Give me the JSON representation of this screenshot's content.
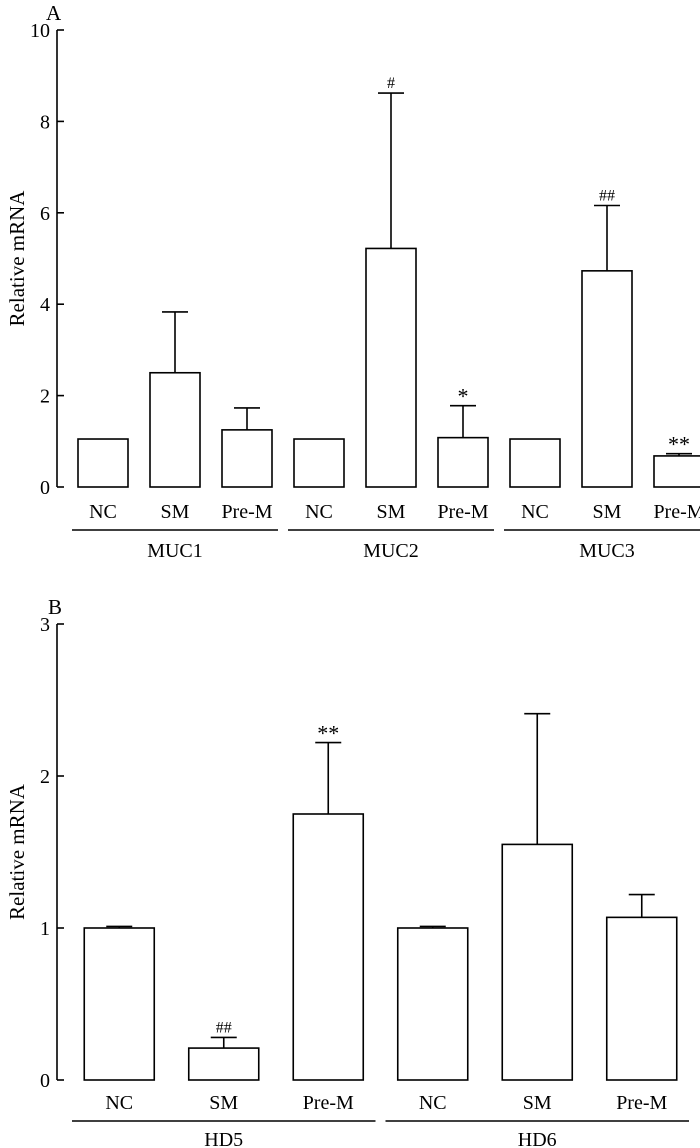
{
  "chart_data": [
    {
      "type": "bar",
      "panel_label": "A",
      "ylabel": "Relative mRNA",
      "ylim": [
        0,
        10
      ],
      "yticks": [
        0,
        2,
        4,
        6,
        8,
        10
      ],
      "groups": [
        "MUC1",
        "MUC2",
        "MUC3"
      ],
      "categories": [
        "NC",
        "SM",
        "Pre-M",
        "NC",
        "SM",
        "Pre-M",
        "NC",
        "SM",
        "Pre-M"
      ],
      "values": [
        1.05,
        2.5,
        1.25,
        1.05,
        5.22,
        1.08,
        1.05,
        4.73,
        0.68
      ],
      "error": [
        0,
        1.33,
        0.48,
        0,
        3.4,
        0.7,
        0,
        1.43,
        0.05
      ],
      "annotations": [
        "",
        "",
        "",
        "",
        "#",
        "*",
        "",
        "##",
        "**"
      ]
    },
    {
      "type": "bar",
      "panel_label": "B",
      "ylabel": "Relative mRNA",
      "ylim": [
        0,
        3
      ],
      "yticks": [
        0,
        1,
        2,
        3
      ],
      "groups": [
        "HD5",
        "HD6"
      ],
      "categories": [
        "NC",
        "SM",
        "Pre-M",
        "NC",
        "SM",
        "Pre-M"
      ],
      "values": [
        1.0,
        0.21,
        1.75,
        1.0,
        1.55,
        1.07
      ],
      "error": [
        0.01,
        0.07,
        0.47,
        0.01,
        0.86,
        0.15
      ],
      "annotations": [
        "",
        "##",
        "**",
        "",
        "",
        ""
      ]
    }
  ]
}
